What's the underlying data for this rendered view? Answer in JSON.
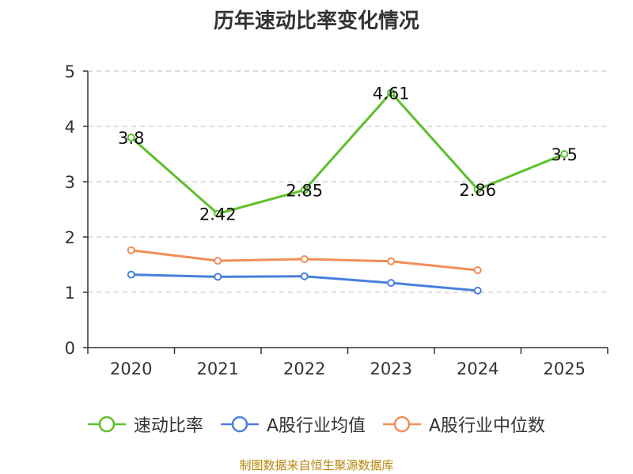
{
  "title": "历年速动比率变化情况",
  "source": "制图数据来自恒生聚源数据库",
  "chart_data": {
    "type": "line",
    "title": "历年速动比率变化情况",
    "categories": [
      "2020",
      "2021",
      "2022",
      "2023",
      "2024",
      "2025"
    ],
    "ylim": [
      0,
      5
    ],
    "yticks": [
      "0",
      "1",
      "2",
      "3",
      "4",
      "5"
    ],
    "grid": true,
    "legend_position": "bottom",
    "series": [
      {
        "name": "速动比率",
        "color": "#5cc02a",
        "values": [
          3.8,
          2.42,
          2.85,
          4.61,
          2.86,
          3.5
        ],
        "labels": [
          "3.8",
          "2.42",
          "2.85",
          "4.61",
          "2.86",
          "3.5"
        ],
        "show_labels": true
      },
      {
        "name": "A股行业均值",
        "color": "#4a7fdc",
        "values": [
          1.32,
          1.28,
          1.29,
          1.17,
          1.03,
          null
        ],
        "show_labels": false
      },
      {
        "name": "A股行业中位数",
        "color": "#f28e59",
        "values": [
          1.76,
          1.57,
          1.6,
          1.56,
          1.4,
          null
        ],
        "show_labels": false
      }
    ]
  }
}
